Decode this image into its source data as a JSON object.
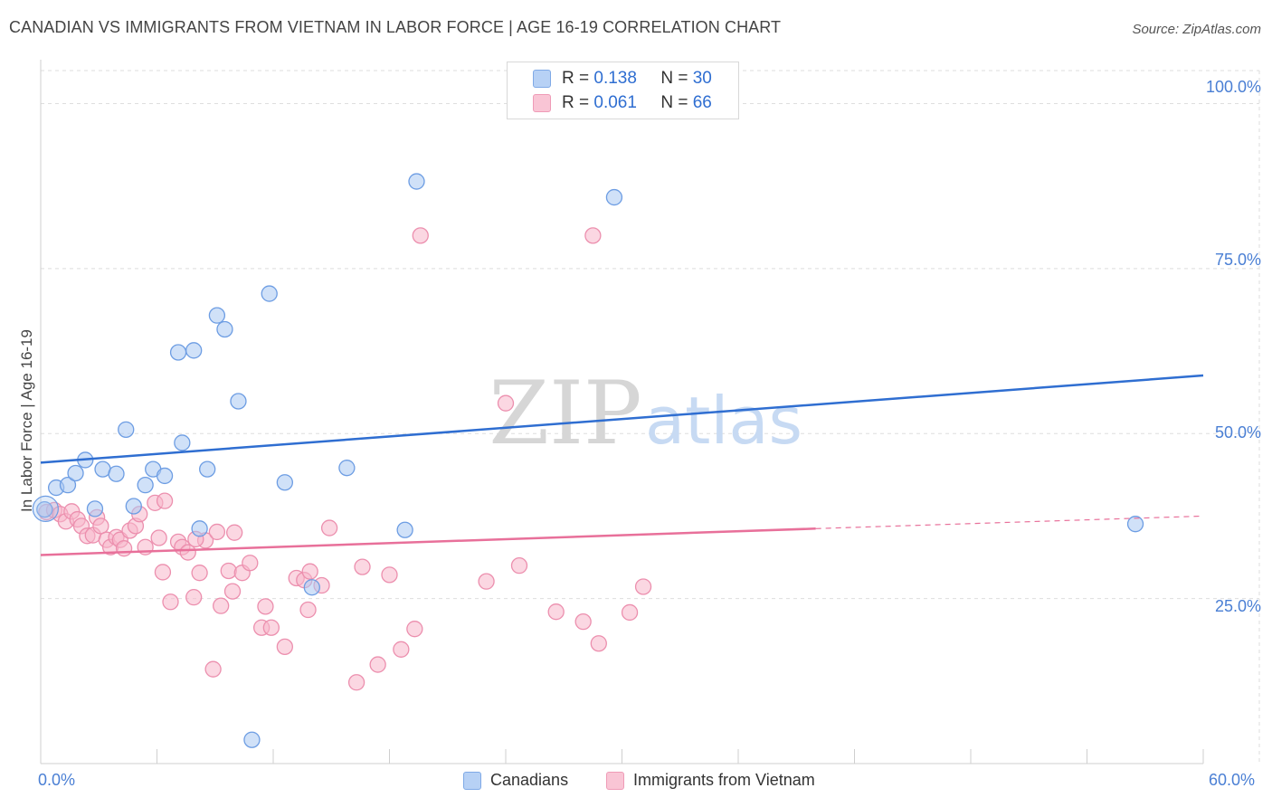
{
  "header": {
    "title": "CANADIAN VS IMMIGRANTS FROM VIETNAM IN LABOR FORCE | AGE 16-19 CORRELATION CHART",
    "source": "Source: ZipAtlas.com"
  },
  "watermark": {
    "zip": "ZIP",
    "atlas": "atlas"
  },
  "legend": {
    "r_label": "R =",
    "n_label": "N =",
    "series1": {
      "r": "0.138",
      "n": "30"
    },
    "series2": {
      "r": "0.061",
      "n": "66"
    }
  },
  "bottom_legend": {
    "series1": "Canadians",
    "series2": "Immigrants from Vietnam"
  },
  "colors": {
    "blue_fill": "#a9c8f2",
    "blue_stroke": "#6d9de3",
    "blue_line": "#2f6ed1",
    "pink_fill": "#f7b7cb",
    "pink_stroke": "#ec8fae",
    "pink_line": "#e8709a",
    "grid": "#dedede",
    "axis_text": "#4a7fd4"
  },
  "chart_data": {
    "type": "scatter",
    "title": "CANADIAN VS IMMIGRANTS FROM VIETNAM IN LABOR FORCE | AGE 16-19 CORRELATION CHART",
    "xlabel": "",
    "ylabel": "In Labor Force | Age 16-19",
    "xlim": [
      0,
      60
    ],
    "ylim": [
      0,
      105
    ],
    "x_tick_labels": {
      "min": "0.0%",
      "max": "60.0%"
    },
    "y_ticks": [
      {
        "value": 25,
        "label": "25.0%"
      },
      {
        "value": 50,
        "label": "50.0%"
      },
      {
        "value": 75,
        "label": "75.0%"
      },
      {
        "value": 100,
        "label": "100.0%"
      }
    ],
    "series": [
      {
        "name": "Canadians",
        "r": 0.138,
        "n": 30,
        "trend": {
          "x0": 0,
          "y0": 45.6,
          "x1": 60,
          "y1": 58.8
        },
        "points": [
          [
            0.2,
            38.5
          ],
          [
            0.8,
            41.8
          ],
          [
            1.4,
            42.2
          ],
          [
            1.8,
            44.0
          ],
          [
            2.3,
            46.0
          ],
          [
            2.8,
            38.6
          ],
          [
            3.2,
            44.6
          ],
          [
            3.9,
            43.9
          ],
          [
            4.4,
            50.6
          ],
          [
            4.8,
            39.0
          ],
          [
            5.4,
            42.2
          ],
          [
            5.8,
            44.6
          ],
          [
            6.4,
            43.6
          ],
          [
            7.1,
            62.3
          ],
          [
            7.3,
            48.6
          ],
          [
            7.9,
            62.6
          ],
          [
            8.2,
            35.6
          ],
          [
            8.6,
            44.6
          ],
          [
            9.1,
            67.9
          ],
          [
            9.5,
            65.8
          ],
          [
            10.2,
            54.9
          ],
          [
            10.9,
            3.6
          ],
          [
            11.8,
            71.2
          ],
          [
            12.6,
            42.6
          ],
          [
            14.0,
            26.7
          ],
          [
            15.8,
            44.8
          ],
          [
            18.8,
            35.4
          ],
          [
            19.4,
            88.2
          ],
          [
            29.6,
            85.8
          ],
          [
            56.5,
            36.3
          ]
        ]
      },
      {
        "name": "Immigrants from Vietnam",
        "r": 0.061,
        "n": 66,
        "trend": {
          "x0": 0,
          "y0": 31.6,
          "x1": 40,
          "y1": 35.6
        },
        "trend_dashed": {
          "x0": 40,
          "y0": 35.6,
          "x1": 60,
          "y1": 37.5
        },
        "points": [
          [
            0.3,
            38.1
          ],
          [
            0.7,
            38.4
          ],
          [
            1.0,
            37.8
          ],
          [
            1.3,
            36.7
          ],
          [
            1.6,
            38.2
          ],
          [
            1.9,
            37.0
          ],
          [
            2.1,
            36.0
          ],
          [
            2.4,
            34.5
          ],
          [
            2.7,
            34.6
          ],
          [
            2.9,
            37.3
          ],
          [
            3.1,
            36.0
          ],
          [
            3.4,
            33.9
          ],
          [
            3.6,
            32.8
          ],
          [
            3.9,
            34.3
          ],
          [
            4.1,
            33.9
          ],
          [
            4.3,
            32.6
          ],
          [
            4.6,
            35.3
          ],
          [
            4.9,
            36.0
          ],
          [
            5.1,
            37.8
          ],
          [
            5.4,
            32.8
          ],
          [
            5.9,
            39.5
          ],
          [
            6.1,
            34.2
          ],
          [
            6.3,
            29.0
          ],
          [
            6.4,
            39.8
          ],
          [
            6.7,
            24.5
          ],
          [
            7.1,
            33.6
          ],
          [
            7.3,
            32.8
          ],
          [
            7.6,
            32.0
          ],
          [
            7.9,
            25.2
          ],
          [
            8.2,
            28.9
          ],
          [
            8.5,
            33.8
          ],
          [
            8.9,
            14.3
          ],
          [
            9.1,
            35.1
          ],
          [
            9.3,
            23.9
          ],
          [
            9.7,
            29.2
          ],
          [
            9.9,
            26.1
          ],
          [
            10.4,
            28.9
          ],
          [
            10.8,
            30.4
          ],
          [
            11.4,
            20.6
          ],
          [
            11.6,
            23.8
          ],
          [
            11.9,
            20.6
          ],
          [
            12.6,
            17.7
          ],
          [
            13.2,
            28.1
          ],
          [
            13.6,
            27.8
          ],
          [
            13.8,
            23.3
          ],
          [
            13.9,
            29.1
          ],
          [
            14.9,
            35.7
          ],
          [
            16.3,
            12.3
          ],
          [
            16.6,
            29.8
          ],
          [
            17.4,
            15.0
          ],
          [
            18.0,
            28.6
          ],
          [
            18.6,
            17.3
          ],
          [
            19.3,
            20.4
          ],
          [
            19.6,
            80.0
          ],
          [
            23.0,
            27.6
          ],
          [
            24.0,
            54.6
          ],
          [
            24.7,
            30.0
          ],
          [
            26.6,
            23.0
          ],
          [
            28.0,
            21.5
          ],
          [
            28.5,
            80.0
          ],
          [
            28.8,
            18.2
          ],
          [
            30.4,
            22.9
          ],
          [
            31.1,
            26.8
          ],
          [
            14.5,
            27.0
          ],
          [
            10.0,
            35.0
          ],
          [
            8.0,
            34.0
          ]
        ]
      }
    ]
  }
}
